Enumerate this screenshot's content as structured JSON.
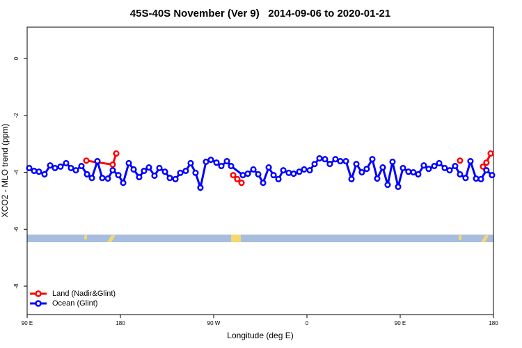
{
  "chart_data": {
    "type": "line",
    "title": "45S-40S November (Ver 9)   2014-09-06 to 2020-01-21",
    "x_label": "Longitude (deg E)",
    "y_label": "XCO2 - MLO trend (ppm)",
    "xlim": [
      90,
      540
    ],
    "xticks": [
      {
        "value": 90,
        "label": "90 E"
      },
      {
        "value": 180,
        "label": "180"
      },
      {
        "value": 270,
        "label": "90 W"
      },
      {
        "value": 360,
        "label": "0"
      },
      {
        "value": 450,
        "label": "90 E"
      },
      {
        "value": 540,
        "label": "180"
      }
    ],
    "ylim": [
      -9,
      1.1
    ],
    "yticks": [
      0,
      -2,
      -4,
      -6,
      -8
    ],
    "legend": "bottom-left",
    "series": [
      {
        "name": "Land (Nadir&Glint)",
        "color": "#ff0000",
        "x": [
          147.1,
          172.6,
          176.0,
          null,
          288.8,
          292.8,
          296.9,
          null,
          507.7,
          null,
          529.9,
          533.2,
          537.3
        ],
        "values": [
          -3.59,
          -3.73,
          -3.34,
          null,
          -4.1,
          -4.24,
          -4.37,
          null,
          -3.59,
          null,
          -3.8,
          -3.66,
          -3.34
        ]
      },
      {
        "name": "Ocean (Glint)",
        "color": "#0000ff",
        "x": [
          92.0,
          96.7,
          101.4,
          106.8,
          112.2,
          116.9,
          122.2,
          127.6,
          132.3,
          137.0,
          142.4,
          147.8,
          152.5,
          157.8,
          162.5,
          167.9,
          172.6,
          178.0,
          182.7,
          188.1,
          192.8,
          198.1,
          202.8,
          207.5,
          212.9,
          217.6,
          223.0,
          227.7,
          233.1,
          237.8,
          243.1,
          247.8,
          252.5,
          257.2,
          262.6,
          267.3,
          272.7,
          277.4,
          282.8,
          286.8,
          298.2,
          302.9,
          308.3,
          313.0,
          317.7,
          323.1,
          327.8,
          332.5,
          337.2,
          342.5,
          347.2,
          352.6,
          357.3,
          362.7,
          367.4,
          372.1,
          377.4,
          382.1,
          387.5,
          392.2,
          397.6,
          403.0,
          407.7,
          413.0,
          417.7,
          423.1,
          427.8,
          433.2,
          437.9,
          442.6,
          448.0,
          452.7,
          458.0,
          462.7,
          467.4,
          472.8,
          477.5,
          482.9,
          487.6,
          493.0,
          497.7,
          503.0,
          507.7,
          513.1,
          517.8,
          523.2,
          527.9,
          533.2,
          538.6
        ],
        "values": [
          -3.85,
          -3.95,
          -3.98,
          -4.07,
          -3.76,
          -3.85,
          -3.8,
          -3.68,
          -3.85,
          -3.93,
          -3.78,
          -4.07,
          -4.2,
          -3.61,
          -4.2,
          -4.22,
          -3.93,
          -4.1,
          -4.37,
          -3.68,
          -3.9,
          -4.17,
          -3.95,
          -3.83,
          -4.12,
          -3.85,
          -3.98,
          -4.2,
          -4.24,
          -4.02,
          -3.95,
          -3.68,
          -4.02,
          -4.54,
          -3.63,
          -3.56,
          -3.66,
          -3.78,
          -3.61,
          -3.78,
          -4.1,
          -4.05,
          -3.9,
          -4.07,
          -4.37,
          -3.83,
          -4.1,
          -4.24,
          -3.93,
          -4.02,
          -4.05,
          -3.98,
          -3.9,
          -3.93,
          -3.71,
          -3.51,
          -3.54,
          -3.71,
          -3.54,
          -3.61,
          -3.61,
          -4.24,
          -3.71,
          -4.0,
          -3.88,
          -3.54,
          -4.22,
          -3.83,
          -4.44,
          -3.63,
          -4.51,
          -3.85,
          -3.98,
          -4.0,
          -4.07,
          -3.76,
          -3.88,
          -3.78,
          -3.68,
          -3.85,
          -3.93,
          -3.78,
          -4.07,
          -4.2,
          -3.61,
          -4.22,
          -4.24,
          -3.93,
          -4.1
        ]
      }
    ]
  }
}
